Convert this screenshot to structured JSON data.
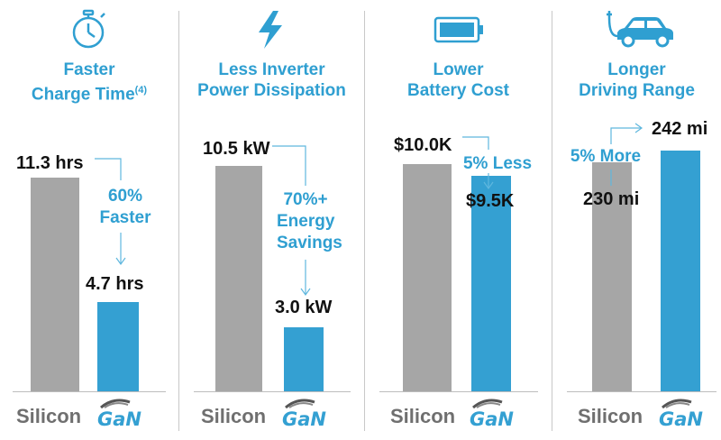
{
  "colors": {
    "accent": "#2f9fd1",
    "silicon": "#a6a6a6",
    "gan": "#34a0d2"
  },
  "categories": [
    "Silicon",
    "GaN"
  ],
  "chart_data": [
    {
      "type": "bar",
      "icon": "stopwatch-icon",
      "title_line1": "Faster",
      "title_line2": "Charge Time",
      "title_sup": "(4)",
      "categories": [
        "Silicon",
        "GaN"
      ],
      "values": [
        11.3,
        4.7
      ],
      "unit": "hrs",
      "labels": [
        "11.3 hrs",
        "4.7 hrs"
      ],
      "annotation": [
        "60%",
        "Faster"
      ]
    },
    {
      "type": "bar",
      "icon": "lightning-bolt-icon",
      "title_line1": "Less Inverter",
      "title_line2": "Power Dissipation",
      "title_sup": "",
      "categories": [
        "Silicon",
        "GaN"
      ],
      "values": [
        10.5,
        3.0
      ],
      "unit": "kW",
      "labels": [
        "10.5 kW",
        "3.0 kW"
      ],
      "annotation": [
        "70%+",
        "Energy",
        "Savings"
      ]
    },
    {
      "type": "bar",
      "icon": "battery-icon",
      "title_line1": "Lower",
      "title_line2": "Battery Cost",
      "title_sup": "",
      "categories": [
        "Silicon",
        "GaN"
      ],
      "values": [
        10.0,
        9.5
      ],
      "unit": "$K",
      "labels": [
        "$10.0K",
        "$9.5K"
      ],
      "annotation": [
        "5% Less"
      ]
    },
    {
      "type": "bar",
      "icon": "electric-car-icon",
      "title_line1": "Longer",
      "title_line2": "Driving Range",
      "title_sup": "",
      "categories": [
        "Silicon",
        "GaN"
      ],
      "values": [
        230,
        242
      ],
      "unit": "mi",
      "labels": [
        "230 mi",
        "242 mi"
      ],
      "annotation": [
        "5% More"
      ]
    }
  ]
}
